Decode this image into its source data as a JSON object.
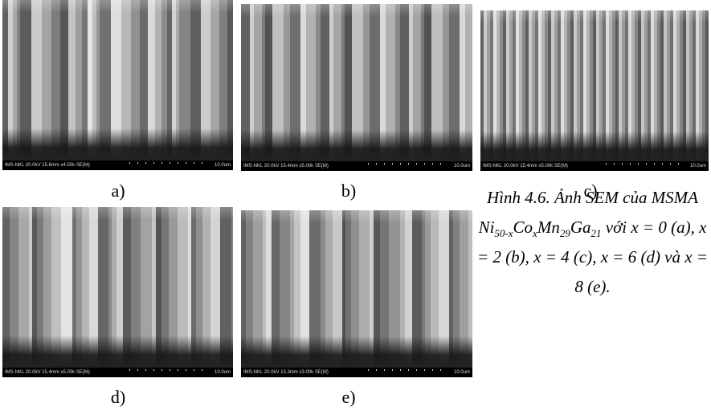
{
  "panels": [
    {
      "info": "IMS-NKL 20.0kV 15.6mm x4.50k SE(M)",
      "scale": "10.0um",
      "label": "a)"
    },
    {
      "info": "IMS-NKL 20.0kV 15.4mm x5.00k SE(M)",
      "scale": "10.0um",
      "label": "b)"
    },
    {
      "info": "IMS-NKL 20.0kV 15.4mm x5.00k SE(M)",
      "scale": "10.0um",
      "label": "c)"
    },
    {
      "info": "IMS-NKL 20.0kV 15.4mm x5.00k SE(M)",
      "scale": "10.0um",
      "label": "d)"
    },
    {
      "info": "IMS-NKL 20.0kV 15.3mm x3.00k SE(M)",
      "scale": "10.0um",
      "label": "e)"
    }
  ],
  "caption": {
    "parts": [
      {
        "text": "Hình 4.6. Ảnh SEM của MSMA Ni"
      },
      {
        "text": "50-x",
        "sub": true
      },
      {
        "text": "Co"
      },
      {
        "text": "x",
        "sub": true
      },
      {
        "text": "Mn"
      },
      {
        "text": "29",
        "sub": true
      },
      {
        "text": "Ga"
      },
      {
        "text": "21",
        "sub": true
      },
      {
        "text": " với x = 0 (a), x = 2 (b), x = 4 (c), x = 6 (d) và x = 8 (e)."
      }
    ]
  }
}
